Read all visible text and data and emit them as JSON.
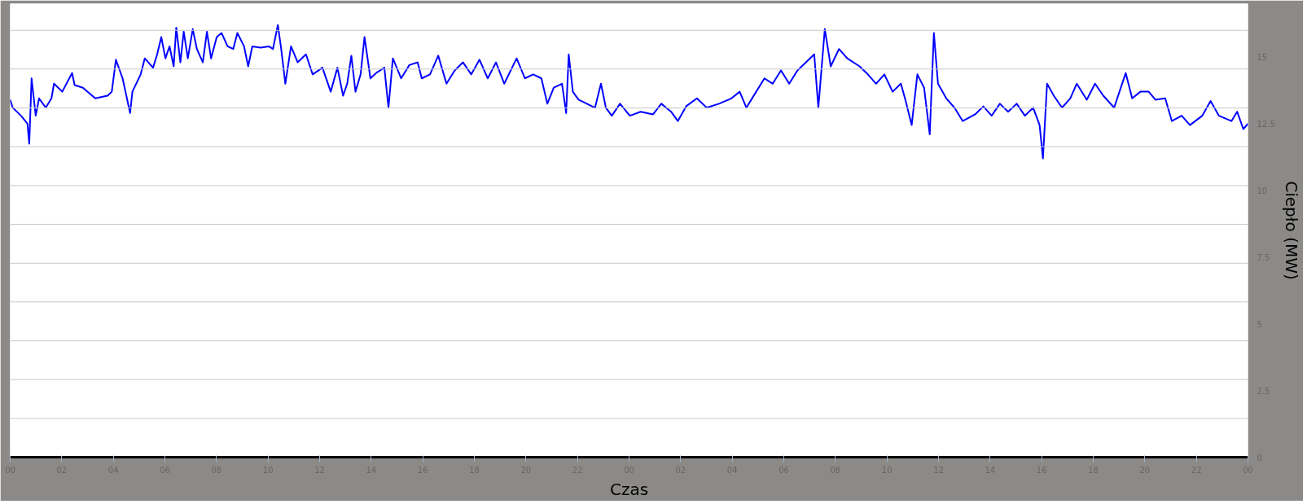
{
  "chart_data": {
    "type": "line",
    "xlabel": "Czas",
    "ylabel": "Ciepło (MW)",
    "x": [
      0,
      0.1,
      0.42,
      0.67,
      0.74,
      0.83,
      0.99,
      1.12,
      1.38,
      1.6,
      1.7,
      2.02,
      2.4,
      2.5,
      2.82,
      3.3,
      3.78,
      3.94,
      4.1,
      4.36,
      4.65,
      4.74,
      5.06,
      5.22,
      5.54,
      5.7,
      5.86,
      6.02,
      6.18,
      6.34,
      6.44,
      6.6,
      6.73,
      6.89,
      7.08,
      7.24,
      7.47,
      7.63,
      7.79,
      8.01,
      8.2,
      8.43,
      8.65,
      8.81,
      9.07,
      9.23,
      9.39,
      9.71,
      10.03,
      10.19,
      10.38,
      10.51,
      10.67,
      10.89,
      11.15,
      11.47,
      11.73,
      12.11,
      12.43,
      12.69,
      12.91,
      13.07,
      13.23,
      13.39,
      13.59,
      13.74,
      13.97,
      14.19,
      14.51,
      14.67,
      14.84,
      15.16,
      15.48,
      15.8,
      15.96,
      16.28,
      16.6,
      16.92,
      17.24,
      17.56,
      17.88,
      18.2,
      18.52,
      18.84,
      19.16,
      19.64,
      19.96,
      20.28,
      20.6,
      20.83,
      21.08,
      21.4,
      21.56,
      21.66,
      21.82,
      22.04,
      22.36,
      22.68,
      22.91,
      23.1,
      23.33,
      23.65,
      24.03,
      24.45,
      24.93,
      25.25,
      25.63,
      25.89,
      26.21,
      26.63,
      27.01,
      27.49,
      27.97,
      28.29,
      28.55,
      28.93,
      29.25,
      29.57,
      29.89,
      30.21,
      30.53,
      30.86,
      31.18,
      31.34,
      31.59,
      31.82,
      32.14,
      32.46,
      32.94,
      33.26,
      33.58,
      33.9,
      34.22,
      34.54,
      34.7,
      34.96,
      35.18,
      35.44,
      35.66,
      35.82,
      35.98,
      36.3,
      36.62,
      36.94,
      37.42,
      37.74,
      38.06,
      38.38,
      38.7,
      39.03,
      39.35,
      39.67,
      39.92,
      40.05,
      40.21,
      40.47,
      40.79,
      41.11,
      41.36,
      41.75,
      42.07,
      42.39,
      42.81,
      43.26,
      43.51,
      43.83,
      44.15,
      44.41,
      44.79,
      45.05,
      45.43,
      45.75,
      46.23,
      46.55,
      46.87,
      47.36,
      47.58,
      47.82,
      48
    ],
    "series": [
      {
        "color": "#0000ff",
        "values": [
          13.4,
          13.1,
          12.8,
          12.5,
          11.75,
          14.2,
          12.8,
          13.45,
          13.1,
          13.45,
          14.0,
          13.7,
          14.4,
          13.95,
          13.85,
          13.45,
          13.55,
          13.7,
          14.9,
          14.2,
          12.9,
          13.7,
          14.35,
          14.95,
          14.6,
          15.1,
          15.75,
          14.95,
          15.4,
          14.65,
          16.1,
          14.8,
          15.95,
          14.95,
          16.05,
          15.3,
          14.8,
          15.95,
          14.95,
          15.75,
          15.9,
          15.4,
          15.3,
          15.9,
          15.4,
          14.65,
          15.4,
          15.35,
          15.4,
          15.3,
          16.2,
          15.3,
          14.0,
          15.4,
          14.8,
          15.1,
          14.35,
          14.6,
          13.7,
          14.6,
          13.55,
          14.0,
          15.05,
          13.7,
          14.35,
          15.75,
          14.2,
          14.4,
          14.6,
          13.1,
          14.95,
          14.2,
          14.7,
          14.8,
          14.2,
          14.35,
          15.05,
          14.0,
          14.5,
          14.8,
          14.35,
          14.9,
          14.2,
          14.8,
          14.0,
          14.95,
          14.2,
          14.35,
          14.2,
          13.25,
          13.85,
          14.0,
          12.9,
          15.1,
          13.7,
          13.4,
          13.25,
          13.1,
          14.0,
          13.1,
          12.8,
          13.25,
          12.8,
          12.95,
          12.85,
          13.25,
          12.95,
          12.6,
          13.15,
          13.45,
          13.1,
          13.25,
          13.45,
          13.7,
          13.1,
          13.7,
          14.2,
          14.0,
          14.5,
          14.0,
          14.5,
          14.8,
          15.1,
          13.1,
          16.05,
          14.65,
          15.3,
          14.95,
          14.65,
          14.35,
          14.0,
          14.35,
          13.7,
          14.0,
          13.45,
          12.45,
          14.35,
          13.85,
          12.1,
          15.9,
          14.0,
          13.45,
          13.1,
          12.6,
          12.85,
          13.15,
          12.8,
          13.25,
          12.95,
          13.25,
          12.8,
          13.1,
          12.45,
          11.2,
          14.0,
          13.55,
          13.1,
          13.45,
          14.0,
          13.4,
          14.0,
          13.55,
          13.1,
          14.4,
          13.45,
          13.7,
          13.7,
          13.4,
          13.45,
          12.6,
          12.8,
          12.45,
          12.8,
          13.35,
          12.8,
          12.6,
          12.95,
          12.3,
          12.5
        ]
      }
    ],
    "xlim": [
      0,
      48
    ],
    "xticks": [
      {
        "value": 0,
        "label": "00"
      },
      {
        "value": 2,
        "label": "02"
      },
      {
        "value": 4,
        "label": "04"
      },
      {
        "value": 6,
        "label": "06"
      },
      {
        "value": 8,
        "label": "08"
      },
      {
        "value": 10,
        "label": "10"
      },
      {
        "value": 12,
        "label": "12"
      },
      {
        "value": 14,
        "label": "14"
      },
      {
        "value": 16,
        "label": "16"
      },
      {
        "value": 18,
        "label": "18"
      },
      {
        "value": 20,
        "label": "20"
      },
      {
        "value": 22,
        "label": "22"
      },
      {
        "value": 24,
        "label": "00"
      },
      {
        "value": 26,
        "label": "02"
      },
      {
        "value": 28,
        "label": "04"
      },
      {
        "value": 30,
        "label": "06"
      },
      {
        "value": 32,
        "label": "08"
      },
      {
        "value": 34,
        "label": "10"
      },
      {
        "value": 36,
        "label": "12"
      },
      {
        "value": 38,
        "label": "14"
      },
      {
        "value": 40,
        "label": "16"
      },
      {
        "value": 42,
        "label": "18"
      },
      {
        "value": 44,
        "label": "20"
      },
      {
        "value": 46,
        "label": "22"
      },
      {
        "value": 48,
        "label": "00"
      }
    ],
    "ylim": [
      0,
      17
    ],
    "yticks": [
      0,
      2.5,
      5,
      7.5,
      10,
      12.5,
      15,
      {
        "value": 1.45,
        "label": null
      },
      {
        "value": 2.91,
        "label": null
      },
      {
        "value": 4.36,
        "label": null
      },
      {
        "value": 5.82,
        "label": null
      },
      {
        "value": 7.27,
        "label": null
      },
      {
        "value": 8.73,
        "label": null
      },
      {
        "value": 10.18,
        "label": null
      },
      {
        "value": 11.64,
        "label": null
      },
      {
        "value": 13.09,
        "label": null
      },
      {
        "value": 14.55,
        "label": null
      },
      {
        "value": 16,
        "label": null
      }
    ],
    "grid": "y",
    "marker": "none",
    "line_style": "solid"
  }
}
